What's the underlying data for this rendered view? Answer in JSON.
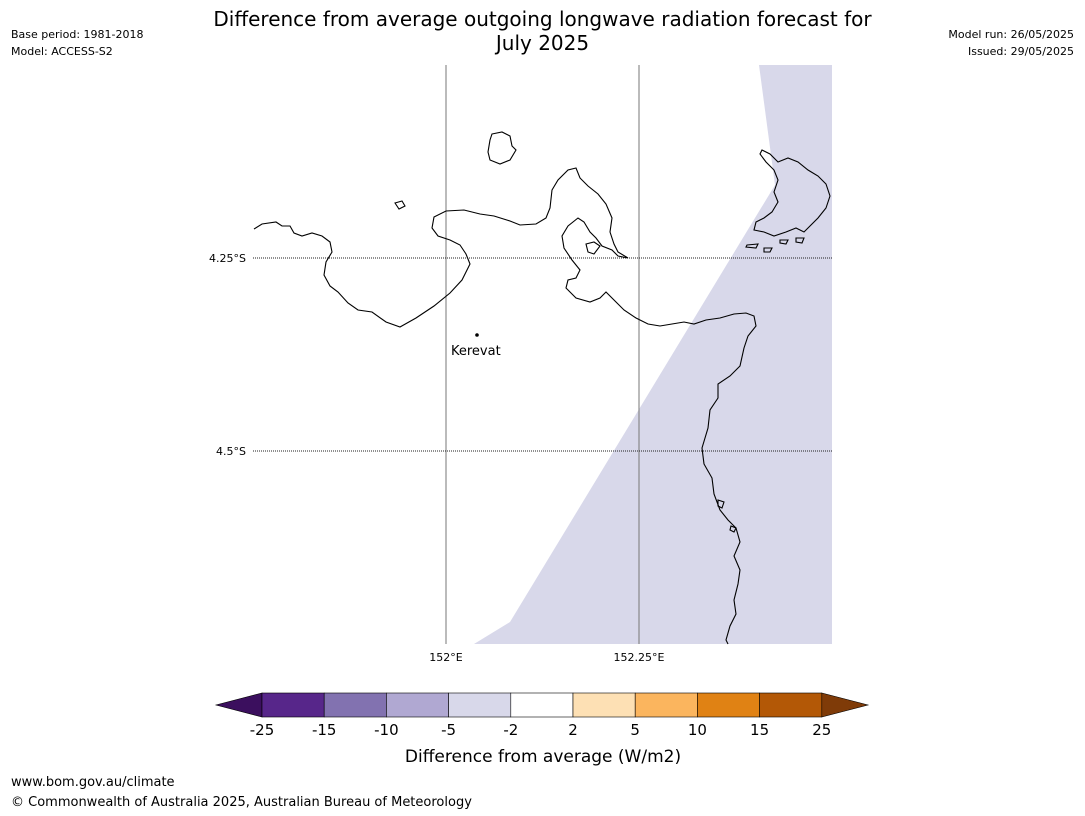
{
  "title_line1": "Difference from average outgoing longwave radiation forecast for",
  "title_line2": "July 2025",
  "meta_left": {
    "base_period": "Base period: 1981-2018",
    "model": "Model: ACCESS-S2"
  },
  "meta_right": {
    "model_run": "Model run: 26/05/2025",
    "issued": "Issued: 29/05/2025"
  },
  "map": {
    "lat_labels": [
      "4.25°S",
      "4.5°S"
    ],
    "lon_labels": [
      "152°E",
      "152.25°E"
    ],
    "place_label": "Kerevat",
    "shading_category": "-5 to -2",
    "shading_color": "#d8d8ea"
  },
  "legend": {
    "tick_labels": [
      "-25",
      "-15",
      "-10",
      "-5",
      "-2",
      "2",
      "5",
      "10",
      "15",
      "25"
    ],
    "colors": [
      "#3b0f5e",
      "#57268a",
      "#8272b0",
      "#b0a8d2",
      "#d8d8ea",
      "#ffffff",
      "#fde0b4",
      "#fbb55e",
      "#e08214",
      "#b35806",
      "#7f3b08"
    ],
    "title": "Difference from average (W/m2)"
  },
  "footer": {
    "url": "www.bom.gov.au/climate",
    "copyright": "© Commonwealth of Australia 2025, Australian Bureau of Meteorology"
  }
}
